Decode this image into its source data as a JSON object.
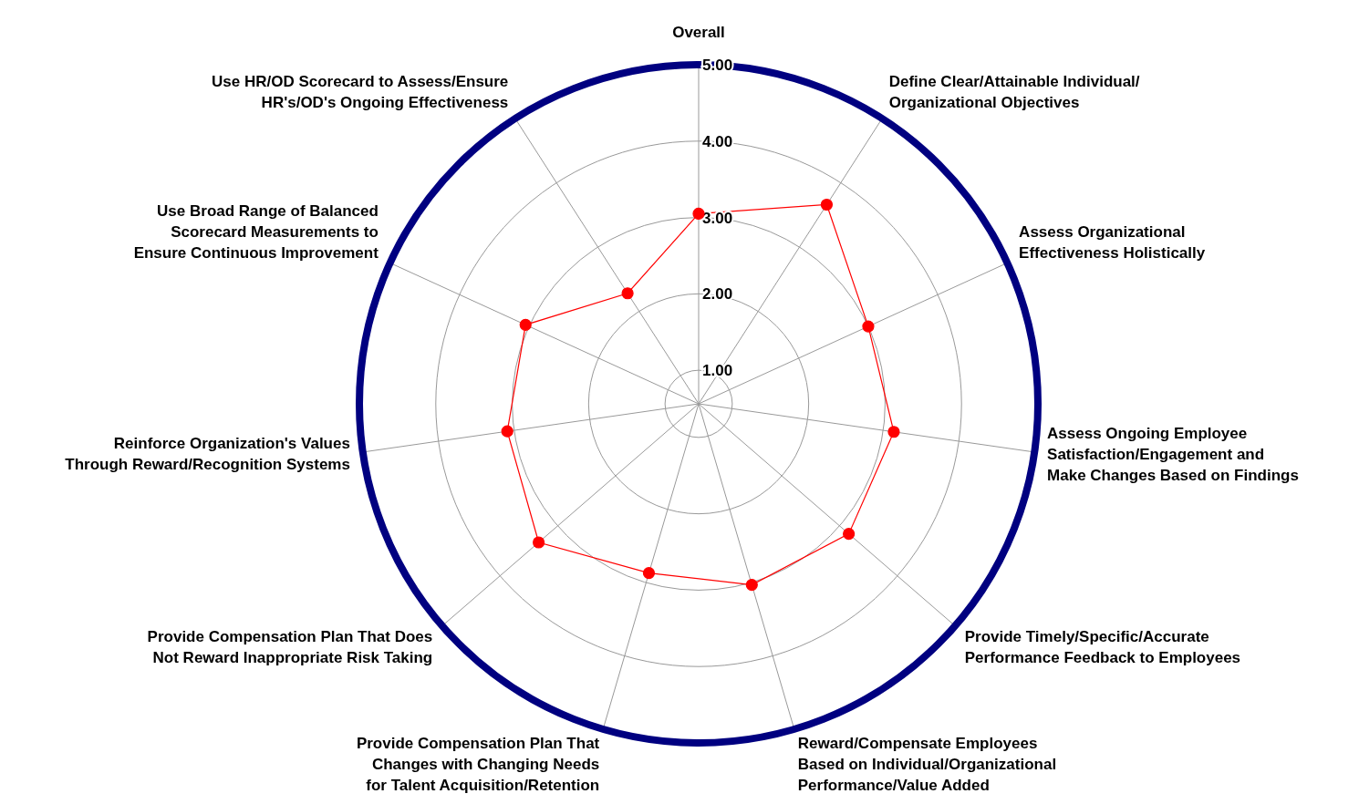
{
  "chart_data": {
    "type": "radar",
    "categories": [
      "Overall",
      "Define Clear/Attainable Individual/\nOrganizational Objectives",
      "Assess Organizational\nEffectiveness Holistically",
      "Assess Ongoing Employee\nSatisfaction/Engagement and\nMake Changes Based on Findings",
      "Provide Timely/Specific/Accurate\nPerformance Feedback to Employees",
      "Reward/Compensate Employees\nBased on Individual/Organizational\nPerformance/Value Added",
      "Provide Compensation Plan That\nChanges with Changing Needs\nfor Talent Acquisition/Retention",
      "Provide Compensation Plan That Does\nNot Reward Inappropriate Risk Taking",
      "Reinforce Organization's Values\nThrough Reward/Recognition Systems",
      "Use Broad Range of Balanced\nScorecard Measurements to\nEnsure Continuous Improvement",
      "Use HR/OD Scorecard to Assess/Ensure\nHR's/OD's Ongoing Effectiveness"
    ],
    "series": [
      {
        "color": "#ff0000",
        "values": [
          3.05,
          3.66,
          3.0,
          3.14,
          3.16,
          3.03,
          2.87,
          3.33,
          3.09,
          3.05,
          2.28
        ]
      }
    ],
    "ylim": [
      0.56,
      5
    ],
    "yticks": [
      {
        "value": 1,
        "label": "1.00"
      },
      {
        "value": 2,
        "label": "2.00"
      },
      {
        "value": 3,
        "label": "3.00"
      },
      {
        "value": 4,
        "label": "4.00"
      },
      {
        "value": 5,
        "label": "5.00"
      }
    ],
    "grid": true,
    "marker": "circle",
    "legend": false
  }
}
